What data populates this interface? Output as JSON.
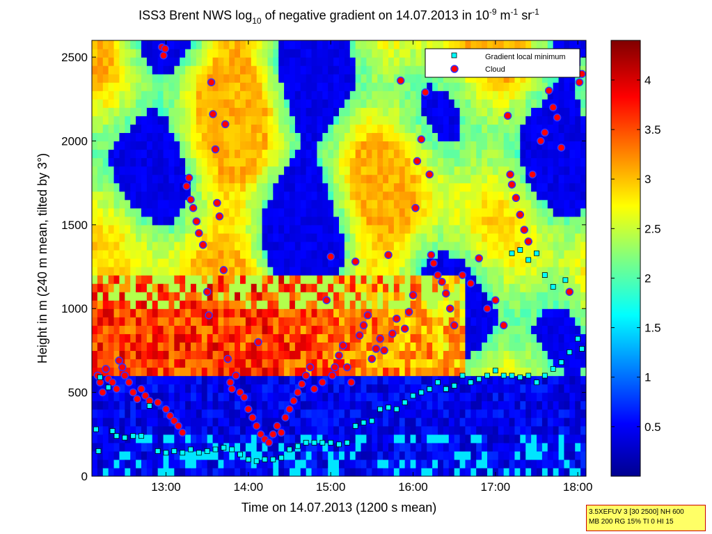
{
  "chart_data": {
    "type": "heatmap",
    "title_parts": {
      "pre": "ISS3 Brent NWS log",
      "sub10": "10",
      "mid": " of negative gradient on 14.07.2013 in 10",
      "sup1": "-9",
      "mid2": " m",
      "sup2": "-1",
      "mid3": " sr",
      "sup3": "-1"
    },
    "xlabel": "Time on 14.07.2013 (1200 s mean)",
    "ylabel": "Height in m (240 m mean, tilted by 3°)",
    "x_unit": "hours",
    "x_range": [
      12.1,
      18.1
    ],
    "y_range": [
      0,
      2600
    ],
    "xticks": [
      13,
      14,
      15,
      16,
      17,
      18
    ],
    "xtick_labels": [
      "13:00",
      "14:00",
      "15:00",
      "16:00",
      "17:00",
      "18:00"
    ],
    "yticks": [
      0,
      500,
      1000,
      1500,
      2000,
      2500
    ],
    "ytick_labels": [
      "0",
      "500",
      "1000",
      "1500",
      "2000",
      "2500"
    ],
    "colorbar": {
      "range": [
        0,
        4.4
      ],
      "ticks": [
        0.5,
        1,
        1.5,
        2,
        2.5,
        3,
        3.5,
        4
      ],
      "tick_labels": [
        "0.5",
        "1",
        "1.5",
        "2",
        "2.5",
        "3",
        "3.5",
        "4"
      ],
      "colormap": "jet"
    },
    "legend": {
      "position": "top-right",
      "entries": [
        {
          "label": "Gradient local minimum",
          "marker": "square",
          "color": "#00ffff"
        },
        {
          "label": "Cloud",
          "marker": "circle",
          "color": "#ff0000"
        }
      ]
    },
    "series": [
      {
        "name": "Cloud",
        "points": [
          [
            12.17,
            600
          ],
          [
            12.2,
            560
          ],
          [
            12.23,
            500
          ],
          [
            12.27,
            640
          ],
          [
            12.3,
            580
          ],
          [
            12.35,
            560
          ],
          [
            12.4,
            520
          ],
          [
            12.43,
            690
          ],
          [
            12.47,
            650
          ],
          [
            12.5,
            600
          ],
          [
            12.55,
            560
          ],
          [
            12.6,
            500
          ],
          [
            12.65,
            460
          ],
          [
            12.7,
            520
          ],
          [
            12.75,
            480
          ],
          [
            12.8,
            450
          ],
          [
            12.9,
            440
          ],
          [
            12.95,
            2560
          ],
          [
            12.97,
            2510
          ],
          [
            12.99,
            2550
          ],
          [
            13.0,
            400
          ],
          [
            13.05,
            360
          ],
          [
            13.1,
            330
          ],
          [
            13.15,
            300
          ],
          [
            13.2,
            260
          ],
          [
            13.25,
            1730
          ],
          [
            13.28,
            1780
          ],
          [
            13.3,
            1650
          ],
          [
            13.33,
            1600
          ],
          [
            13.37,
            1520
          ],
          [
            13.4,
            1450
          ],
          [
            13.45,
            1380
          ],
          [
            13.5,
            1100
          ],
          [
            13.52,
            960
          ],
          [
            13.55,
            2350
          ],
          [
            13.57,
            2160
          ],
          [
            13.6,
            1950
          ],
          [
            13.62,
            1630
          ],
          [
            13.65,
            1550
          ],
          [
            13.7,
            1230
          ],
          [
            13.72,
            2100
          ],
          [
            13.75,
            700
          ],
          [
            13.78,
            560
          ],
          [
            13.8,
            520
          ],
          [
            13.85,
            600
          ],
          [
            13.9,
            500
          ],
          [
            13.95,
            470
          ],
          [
            14.0,
            400
          ],
          [
            14.05,
            350
          ],
          [
            14.1,
            300
          ],
          [
            14.12,
            800
          ],
          [
            14.15,
            250
          ],
          [
            14.2,
            220
          ],
          [
            14.25,
            200
          ],
          [
            14.3,
            250
          ],
          [
            14.35,
            300
          ],
          [
            14.4,
            260
          ],
          [
            14.45,
            350
          ],
          [
            14.5,
            400
          ],
          [
            14.55,
            450
          ],
          [
            14.6,
            500
          ],
          [
            14.65,
            550
          ],
          [
            14.7,
            600
          ],
          [
            14.75,
            650
          ],
          [
            14.8,
            520
          ],
          [
            14.9,
            560
          ],
          [
            14.95,
            1050
          ],
          [
            15.0,
            1310
          ],
          [
            15.02,
            600
          ],
          [
            15.05,
            650
          ],
          [
            15.1,
            720
          ],
          [
            15.15,
            780
          ],
          [
            15.2,
            650
          ],
          [
            15.25,
            560
          ],
          [
            15.3,
            1280
          ],
          [
            15.35,
            840
          ],
          [
            15.4,
            900
          ],
          [
            15.45,
            960
          ],
          [
            15.5,
            700
          ],
          [
            15.55,
            760
          ],
          [
            15.6,
            820
          ],
          [
            15.65,
            750
          ],
          [
            15.7,
            1320
          ],
          [
            15.75,
            850
          ],
          [
            15.8,
            940
          ],
          [
            15.85,
            2360
          ],
          [
            15.9,
            880
          ],
          [
            15.95,
            980
          ],
          [
            16.0,
            1080
          ],
          [
            16.03,
            1600
          ],
          [
            16.05,
            1880
          ],
          [
            16.1,
            2010
          ],
          [
            16.15,
            2290
          ],
          [
            16.2,
            1800
          ],
          [
            16.22,
            1320
          ],
          [
            16.25,
            1270
          ],
          [
            16.3,
            1200
          ],
          [
            16.35,
            1160
          ],
          [
            16.4,
            1090
          ],
          [
            16.45,
            1000
          ],
          [
            16.5,
            900
          ],
          [
            16.6,
            1200
          ],
          [
            16.7,
            1150
          ],
          [
            16.8,
            1300
          ],
          [
            16.9,
            1000
          ],
          [
            17.0,
            1050
          ],
          [
            17.1,
            900
          ],
          [
            17.15,
            2150
          ],
          [
            17.18,
            1800
          ],
          [
            17.2,
            1740
          ],
          [
            17.25,
            1660
          ],
          [
            17.3,
            1560
          ],
          [
            17.35,
            1470
          ],
          [
            17.4,
            1400
          ],
          [
            17.45,
            1800
          ],
          [
            17.55,
            2000
          ],
          [
            17.6,
            2050
          ],
          [
            17.65,
            2300
          ],
          [
            17.7,
            2200
          ],
          [
            17.75,
            2140
          ],
          [
            17.8,
            1960
          ],
          [
            17.9,
            1100
          ],
          [
            18.02,
            2350
          ],
          [
            18.05,
            2400
          ]
        ]
      },
      {
        "name": "Gradient local minimum",
        "points": [
          [
            12.15,
            280
          ],
          [
            12.18,
            150
          ],
          [
            12.2,
            590
          ],
          [
            12.3,
            530
          ],
          [
            12.35,
            270
          ],
          [
            12.4,
            240
          ],
          [
            12.5,
            230
          ],
          [
            12.6,
            240
          ],
          [
            12.7,
            240
          ],
          [
            12.8,
            420
          ],
          [
            12.9,
            150
          ],
          [
            13.0,
            140
          ],
          [
            13.1,
            150
          ],
          [
            13.2,
            140
          ],
          [
            13.3,
            160
          ],
          [
            13.4,
            140
          ],
          [
            13.5,
            150
          ],
          [
            13.6,
            160
          ],
          [
            13.7,
            170
          ],
          [
            13.8,
            160
          ],
          [
            13.9,
            130
          ],
          [
            14.0,
            100
          ],
          [
            14.1,
            90
          ],
          [
            14.2,
            100
          ],
          [
            14.3,
            100
          ],
          [
            14.4,
            110
          ],
          [
            14.5,
            160
          ],
          [
            14.6,
            180
          ],
          [
            14.7,
            200
          ],
          [
            14.8,
            200
          ],
          [
            14.9,
            200
          ],
          [
            15.0,
            200
          ],
          [
            15.1,
            190
          ],
          [
            15.2,
            200
          ],
          [
            15.3,
            300
          ],
          [
            15.4,
            320
          ],
          [
            15.5,
            330
          ],
          [
            15.6,
            400
          ],
          [
            15.7,
            410
          ],
          [
            15.8,
            400
          ],
          [
            15.9,
            440
          ],
          [
            16.0,
            480
          ],
          [
            16.1,
            500
          ],
          [
            16.2,
            520
          ],
          [
            16.3,
            560
          ],
          [
            16.4,
            520
          ],
          [
            16.5,
            540
          ],
          [
            16.6,
            600
          ],
          [
            16.7,
            560
          ],
          [
            16.8,
            580
          ],
          [
            16.9,
            600
          ],
          [
            17.0,
            630
          ],
          [
            17.1,
            600
          ],
          [
            17.2,
            600
          ],
          [
            17.3,
            590
          ],
          [
            17.4,
            600
          ],
          [
            17.5,
            560
          ],
          [
            17.6,
            600
          ],
          [
            17.7,
            640
          ],
          [
            17.8,
            680
          ],
          [
            17.9,
            740
          ],
          [
            18.0,
            820
          ],
          [
            18.05,
            760
          ],
          [
            17.2,
            1330
          ],
          [
            17.3,
            1350
          ],
          [
            17.4,
            1290
          ],
          [
            17.5,
            1330
          ],
          [
            17.6,
            1200
          ],
          [
            17.7,
            1130
          ],
          [
            17.85,
            1170
          ]
        ]
      }
    ]
  },
  "info_box": {
    "line1": "3.5XEFUV 3 [30 2500] NH 600",
    "line2": "MB 200 RG 15% TI 0 HI 15"
  }
}
